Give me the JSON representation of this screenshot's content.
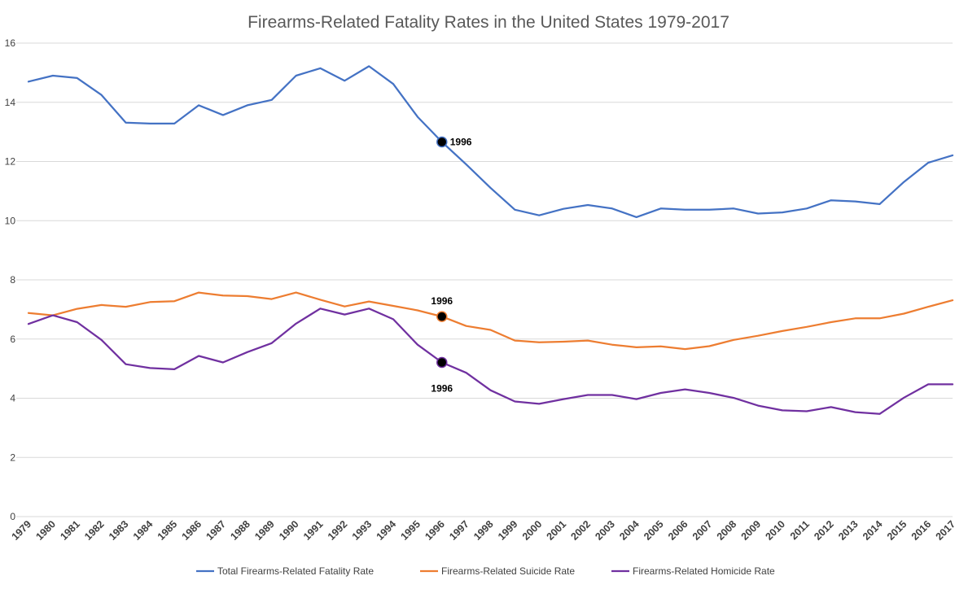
{
  "chart_data": {
    "type": "line",
    "title": "Firearms-Related Fatality Rates in the United States 1979-2017",
    "xlabel": "",
    "ylabel": "",
    "ylim": [
      0,
      16
    ],
    "yticks": [
      0,
      2,
      4,
      6,
      8,
      10,
      12,
      14,
      16
    ],
    "grid": true,
    "legend_position": "bottom",
    "categories": [
      "1979",
      "1980",
      "1981",
      "1982",
      "1983",
      "1984",
      "1985",
      "1986",
      "1987",
      "1988",
      "1989",
      "1990",
      "1991",
      "1992",
      "1993",
      "1994",
      "1995",
      "1996",
      "1997",
      "1998",
      "1999",
      "2000",
      "2001",
      "2002",
      "2003",
      "2004",
      "2005",
      "2006",
      "2007",
      "2008",
      "2009",
      "2010",
      "2011",
      "2012",
      "2013",
      "2014",
      "2015",
      "2016",
      "2017"
    ],
    "series": [
      {
        "name": "Total Firearms-Related Fatality Rate",
        "color": "#4472c4",
        "values": [
          14.7,
          14.9,
          14.82,
          14.25,
          13.31,
          13.28,
          13.28,
          13.9,
          13.57,
          13.9,
          14.08,
          14.9,
          15.15,
          14.73,
          15.22,
          14.62,
          13.51,
          12.66,
          11.9,
          11.11,
          10.37,
          10.18,
          10.4,
          10.53,
          10.41,
          10.12,
          10.41,
          10.37,
          10.37,
          10.41,
          10.24,
          10.28,
          10.41,
          10.69,
          10.65,
          10.56,
          11.31,
          11.96,
          12.21
        ]
      },
      {
        "name": "Firearms-Related Suicide Rate",
        "color": "#ed7d31",
        "values": [
          6.88,
          6.8,
          7.02,
          7.15,
          7.09,
          7.25,
          7.28,
          7.57,
          7.47,
          7.45,
          7.35,
          7.57,
          7.33,
          7.1,
          7.27,
          7.12,
          6.97,
          6.76,
          6.44,
          6.31,
          5.95,
          5.89,
          5.91,
          5.95,
          5.81,
          5.72,
          5.75,
          5.66,
          5.76,
          5.97,
          6.11,
          6.27,
          6.41,
          6.57,
          6.7,
          6.7,
          6.86,
          7.09,
          7.31
        ]
      },
      {
        "name": "Firearms-Related Homicide Rate",
        "color": "#7030a0",
        "values": [
          6.51,
          6.8,
          6.57,
          5.97,
          5.15,
          5.02,
          4.98,
          5.43,
          5.21,
          5.56,
          5.86,
          6.52,
          7.03,
          6.83,
          7.03,
          6.67,
          5.81,
          5.21,
          4.86,
          4.27,
          3.89,
          3.81,
          3.97,
          4.11,
          4.11,
          3.97,
          4.18,
          4.3,
          4.18,
          4.01,
          3.75,
          3.59,
          3.56,
          3.7,
          3.53,
          3.47,
          4.02,
          4.47,
          4.47
        ]
      }
    ],
    "annotations": [
      {
        "series": 0,
        "x": "1996",
        "y": 12.66,
        "label": "1996",
        "position": "right"
      },
      {
        "series": 1,
        "x": "1996",
        "y": 6.76,
        "label": "1996",
        "position": "above"
      },
      {
        "series": 2,
        "x": "1996",
        "y": 5.21,
        "label": "1996",
        "position": "below"
      }
    ]
  }
}
